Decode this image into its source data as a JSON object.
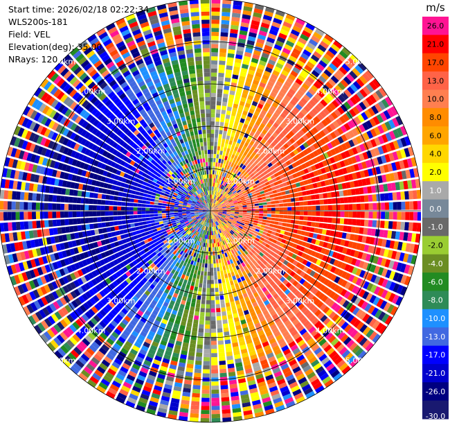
{
  "header": {
    "start_time": "Start time: 2026/02/18 02:22:34",
    "instrument": "WLS200s-181",
    "field": "Field: VEL",
    "elevation": "Elevation(deg): 35.00",
    "nrays": "NRays: 120"
  },
  "chart_data": {
    "type": "ppi",
    "field": "VEL",
    "elevation_deg": 35.0,
    "n_rays": 120,
    "range_rings": [
      {
        "range_km": 1.0,
        "label": "1.00km"
      },
      {
        "range_km": 2.0,
        "label": "2.00km"
      },
      {
        "range_km": 3.0,
        "label": "3.00km"
      },
      {
        "range_km": 4.0,
        "label": "4.00km"
      },
      {
        "range_km": 5.0,
        "label": "5.00km"
      }
    ],
    "colorbar": {
      "unit": "m/s",
      "ticks": [
        "26.0",
        "21.0",
        "17.0",
        "13.0",
        "10.0",
        "8.0",
        "6.0",
        "4.0",
        "2.0",
        "1.0",
        "0.0",
        "-1.0",
        "-2.0",
        "-4.0",
        "-6.0",
        "-8.0",
        "-10.0",
        "-13.0",
        "-17.0",
        "-21.0",
        "-26.0",
        "-30.0"
      ],
      "bounds": [
        -30,
        -26,
        -21,
        -17,
        -13,
        -10,
        -8,
        -6,
        -4,
        -2,
        -1,
        0,
        1,
        2,
        4,
        6,
        8,
        10,
        13,
        17,
        21,
        26,
        30
      ],
      "colors": [
        "#191970",
        "#000080",
        "#0000cd",
        "#0000ff",
        "#4169e1",
        "#1e90ff",
        "#2e8b57",
        "#228b22",
        "#6b8e23",
        "#9acd32",
        "#696969",
        "#778899",
        "#a9a9a9",
        "#ffff00",
        "#ffd700",
        "#ffa500",
        "#ff8c00",
        "#ff7f50",
        "#ff6347",
        "#ff4500",
        "#ff0000",
        "#ff1493"
      ]
    }
  }
}
